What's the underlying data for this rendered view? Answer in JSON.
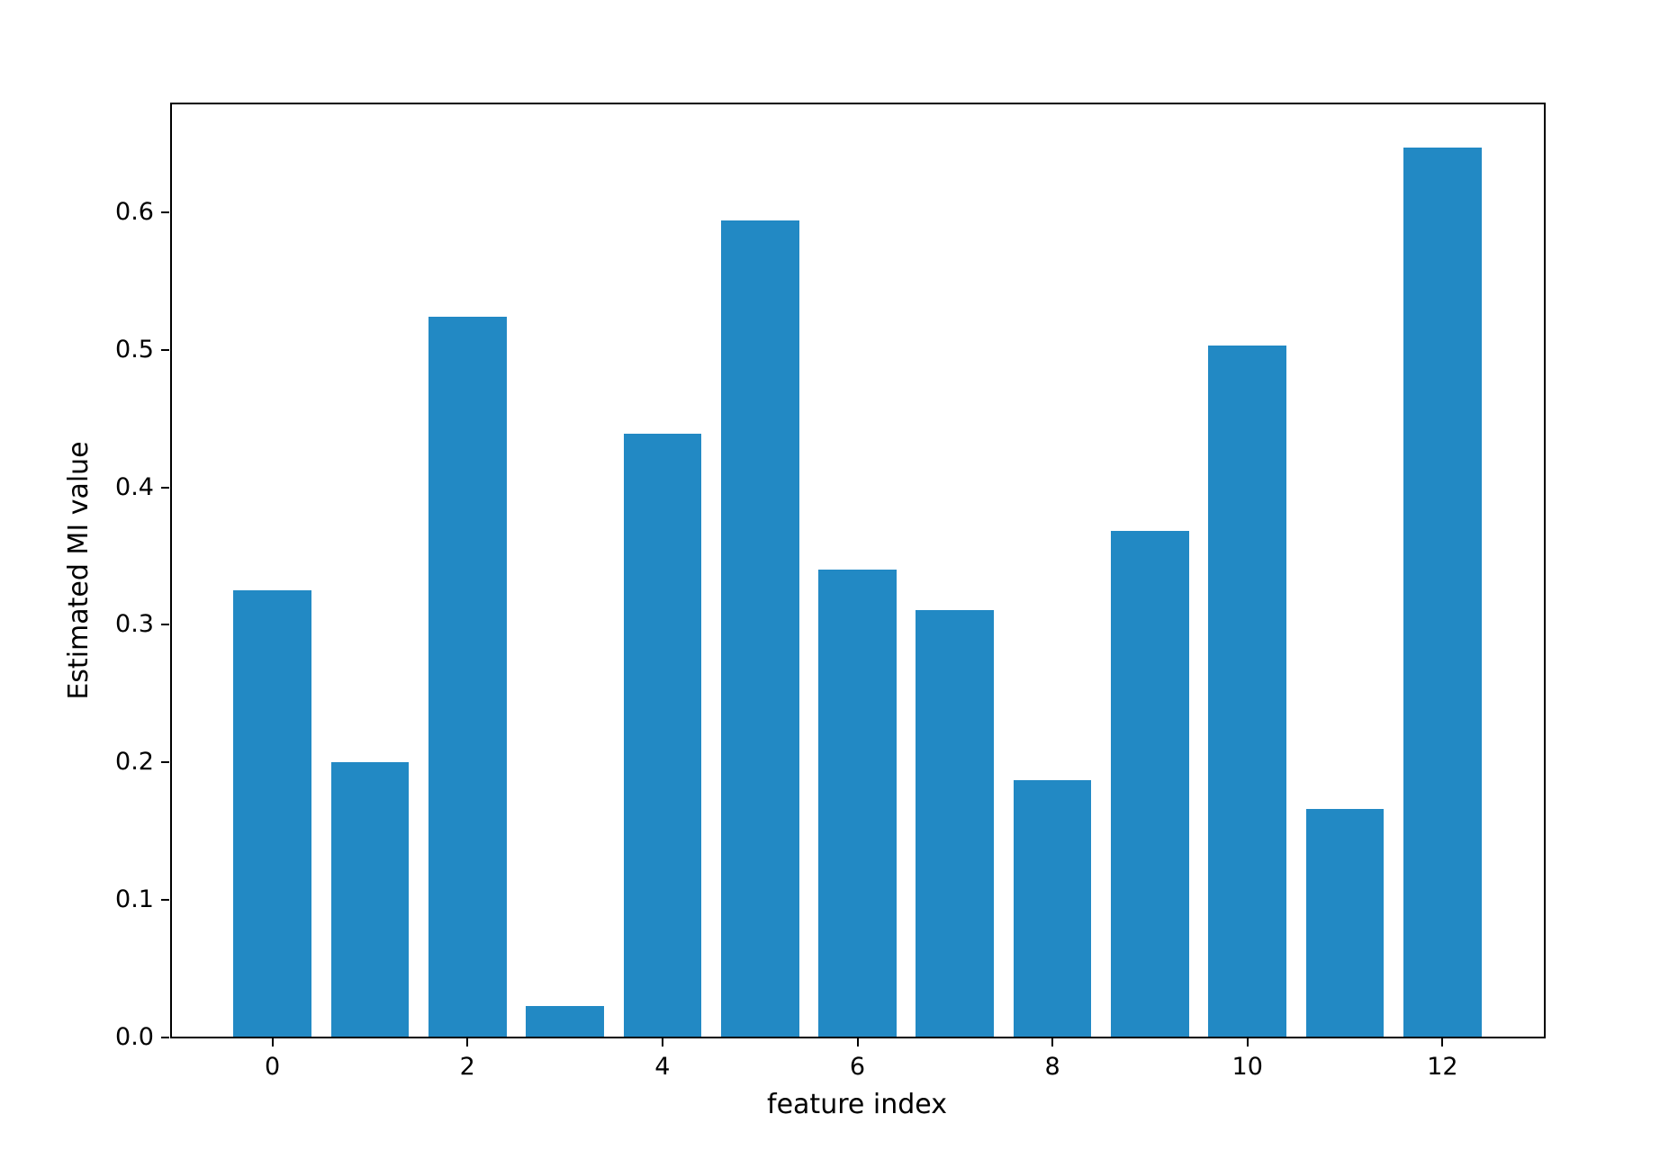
{
  "chart_data": {
    "type": "bar",
    "title": "",
    "xlabel": "feature index",
    "ylabel": "Estimated MI value",
    "categories": [
      0,
      1,
      2,
      3,
      4,
      5,
      6,
      7,
      8,
      9,
      10,
      11,
      12
    ],
    "values": [
      0.325,
      0.2,
      0.524,
      0.023,
      0.439,
      0.594,
      0.34,
      0.311,
      0.187,
      0.368,
      0.503,
      0.166,
      0.647
    ],
    "xticks": [
      0,
      2,
      4,
      6,
      8,
      10,
      12
    ],
    "xtick_labels": [
      "0",
      "2",
      "4",
      "6",
      "8",
      "10",
      "12"
    ],
    "yticks": [
      0.0,
      0.1,
      0.2,
      0.3,
      0.4,
      0.5,
      0.6
    ],
    "ytick_labels": [
      "0.0",
      "0.1",
      "0.2",
      "0.3",
      "0.4",
      "0.5",
      "0.6"
    ],
    "xlim": [
      -1.04,
      13.04
    ],
    "ylim": [
      0,
      0.679
    ],
    "bar_width_ratio": 0.8,
    "bar_color": "#2289c4",
    "axis_color": "#000000",
    "background_color": "#ffffff",
    "grid": false,
    "legend": false
  }
}
